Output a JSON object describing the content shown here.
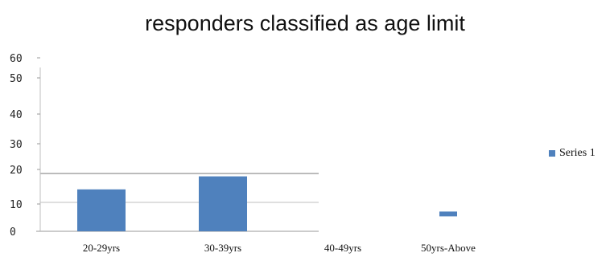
{
  "chart_data": {
    "type": "bar",
    "title": "responders classified as age limit",
    "xlabel": "",
    "ylabel": "",
    "categories": [
      "20-29yrs",
      "30-39yrs",
      "40-49yrs",
      "50yrs-Above"
    ],
    "series": [
      {
        "name": "Series 1",
        "values": [
          14.5,
          19,
          0,
          6
        ],
        "color": "#4f81bd"
      }
    ],
    "ylim": [
      0,
      60
    ],
    "y_ticks": [
      "60",
      "50",
      "40",
      "30",
      "20",
      "10",
      "0"
    ],
    "grid": true,
    "legend_position": "right"
  }
}
